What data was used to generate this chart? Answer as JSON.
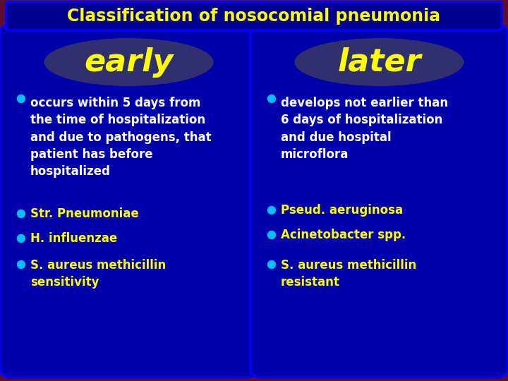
{
  "title": "Classification of nosocomial pneumonia",
  "title_color": "#FFFF00",
  "title_bg_color": "#000090",
  "title_border_color": "#0000FF",
  "bg_color_outer": "#5C1030",
  "card_bg_color": "#0000AA",
  "card_border_color": "#0000FF",
  "oval_bg_color": "#303070",
  "early_label": "early",
  "later_label": "later",
  "label_color": "#FFFF00",
  "bullet_white_color": "#FFFFFF",
  "bullet_yellow_color": "#FFFF00",
  "early_bullet1": "occurs within 5 days from\nthe time of hospitalization\nand due to pathogens, that\npatient has before\nhospitalized",
  "early_bullet2": "Str. Pneumoniae",
  "early_bullet3": "H. influenzae",
  "early_bullet4": "S. aureus methicillin\nsensitivity",
  "later_bullet1": "develops not earlier than\n6 days of hospitalization\nand due hospital\nmicroflora",
  "later_bullet2": "Pseud. aeruginosa",
  "later_bullet3": "Acinetobacter spp.",
  "later_bullet4": "S. aureus methicillin\nresistant",
  "bullet_dot_color": "#00BFFF",
  "font_size_title": 17,
  "font_size_label": 32,
  "font_size_body": 12
}
